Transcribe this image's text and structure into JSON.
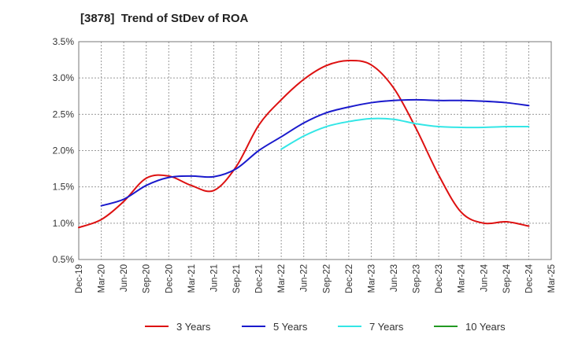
{
  "chart_data": {
    "type": "line",
    "title": "[3878]  Trend of StDev of ROA",
    "xlabel": "",
    "ylabel": "",
    "x_ticks": [
      "Dec-19",
      "Mar-20",
      "Jun-20",
      "Sep-20",
      "Dec-20",
      "Mar-21",
      "Jun-21",
      "Sep-21",
      "Dec-21",
      "Mar-22",
      "Jun-22",
      "Sep-22",
      "Dec-22",
      "Mar-23",
      "Jun-23",
      "Sep-23",
      "Dec-23",
      "Mar-24",
      "Jun-24",
      "Sep-24",
      "Dec-24",
      "Mar-25"
    ],
    "y_ticks": [
      "0.5%",
      "1.0%",
      "1.5%",
      "2.0%",
      "2.5%",
      "3.0%",
      "3.5%"
    ],
    "ylim": [
      0.5,
      3.5
    ],
    "y_unit": "%",
    "grid": true,
    "legend_position": "bottom",
    "series": [
      {
        "name": "3 Years",
        "color": "#dd1111",
        "x": [
          "Dec-19",
          "Mar-20",
          "Jun-20",
          "Sep-20",
          "Dec-20",
          "Mar-21",
          "Jun-21",
          "Sep-21",
          "Dec-21",
          "Mar-22",
          "Jun-22",
          "Sep-22",
          "Dec-22",
          "Mar-23",
          "Jun-23",
          "Sep-23",
          "Dec-23",
          "Mar-24",
          "Jun-24",
          "Sep-24",
          "Dec-24"
        ],
        "values": [
          0.94,
          1.05,
          1.3,
          1.62,
          1.65,
          1.52,
          1.45,
          1.78,
          2.35,
          2.7,
          2.98,
          3.17,
          3.24,
          3.18,
          2.86,
          2.3,
          1.66,
          1.15,
          1.0,
          1.02,
          0.96
        ]
      },
      {
        "name": "5 Years",
        "color": "#1a1acc",
        "x": [
          "Mar-20",
          "Jun-20",
          "Sep-20",
          "Dec-20",
          "Mar-21",
          "Jun-21",
          "Sep-21",
          "Dec-21",
          "Mar-22",
          "Jun-22",
          "Sep-22",
          "Dec-22",
          "Mar-23",
          "Jun-23",
          "Sep-23",
          "Dec-23",
          "Mar-24",
          "Jun-24",
          "Sep-24",
          "Dec-24"
        ],
        "values": [
          1.24,
          1.33,
          1.52,
          1.63,
          1.65,
          1.64,
          1.75,
          2.0,
          2.19,
          2.38,
          2.52,
          2.6,
          2.66,
          2.69,
          2.7,
          2.69,
          2.69,
          2.68,
          2.66,
          2.62
        ]
      },
      {
        "name": "7 Years",
        "color": "#33e6e6",
        "x": [
          "Mar-22",
          "Jun-22",
          "Sep-22",
          "Dec-22",
          "Mar-23",
          "Jun-23",
          "Sep-23",
          "Dec-23",
          "Mar-24",
          "Jun-24",
          "Sep-24",
          "Dec-24"
        ],
        "values": [
          2.02,
          2.2,
          2.33,
          2.4,
          2.44,
          2.43,
          2.37,
          2.33,
          2.32,
          2.32,
          2.33,
          2.33
        ]
      },
      {
        "name": "10 Years",
        "color": "#229922",
        "x": [],
        "values": []
      }
    ]
  }
}
